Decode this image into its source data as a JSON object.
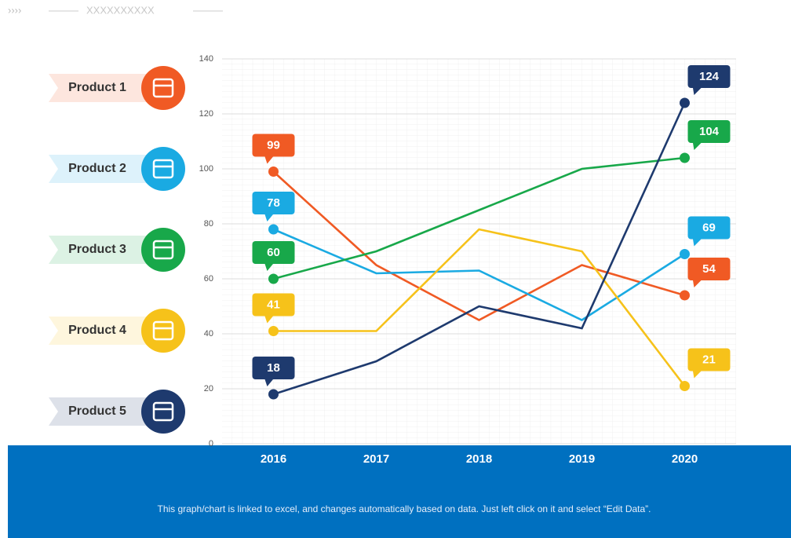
{
  "header": {
    "title": "XXXXXXXXXX"
  },
  "chart_data": {
    "type": "line",
    "categories": [
      "2016",
      "2017",
      "2018",
      "2019",
      "2020"
    ],
    "series": [
      {
        "name": "Product 1",
        "color": "#f05a24",
        "values": [
          99,
          65,
          45,
          65,
          54
        ]
      },
      {
        "name": "Product 2",
        "color": "#1aaae2",
        "values": [
          78,
          62,
          63,
          45,
          69
        ]
      },
      {
        "name": "Product 3",
        "color": "#18a84a",
        "values": [
          60,
          70,
          85,
          100,
          104
        ]
      },
      {
        "name": "Product 4",
        "color": "#f6c21a",
        "values": [
          41,
          41,
          78,
          70,
          21
        ]
      },
      {
        "name": "Product 5",
        "color": "#1e3a6e",
        "values": [
          18,
          30,
          50,
          42,
          124
        ]
      }
    ],
    "ylim": [
      0,
      140
    ],
    "yticks": [
      0,
      20,
      40,
      60,
      80,
      100,
      120,
      140
    ],
    "grid": true
  },
  "footer": {
    "note": "This graph/chart is linked to excel, and changes automatically based on data. Just left click on it and select “Edit Data”."
  }
}
